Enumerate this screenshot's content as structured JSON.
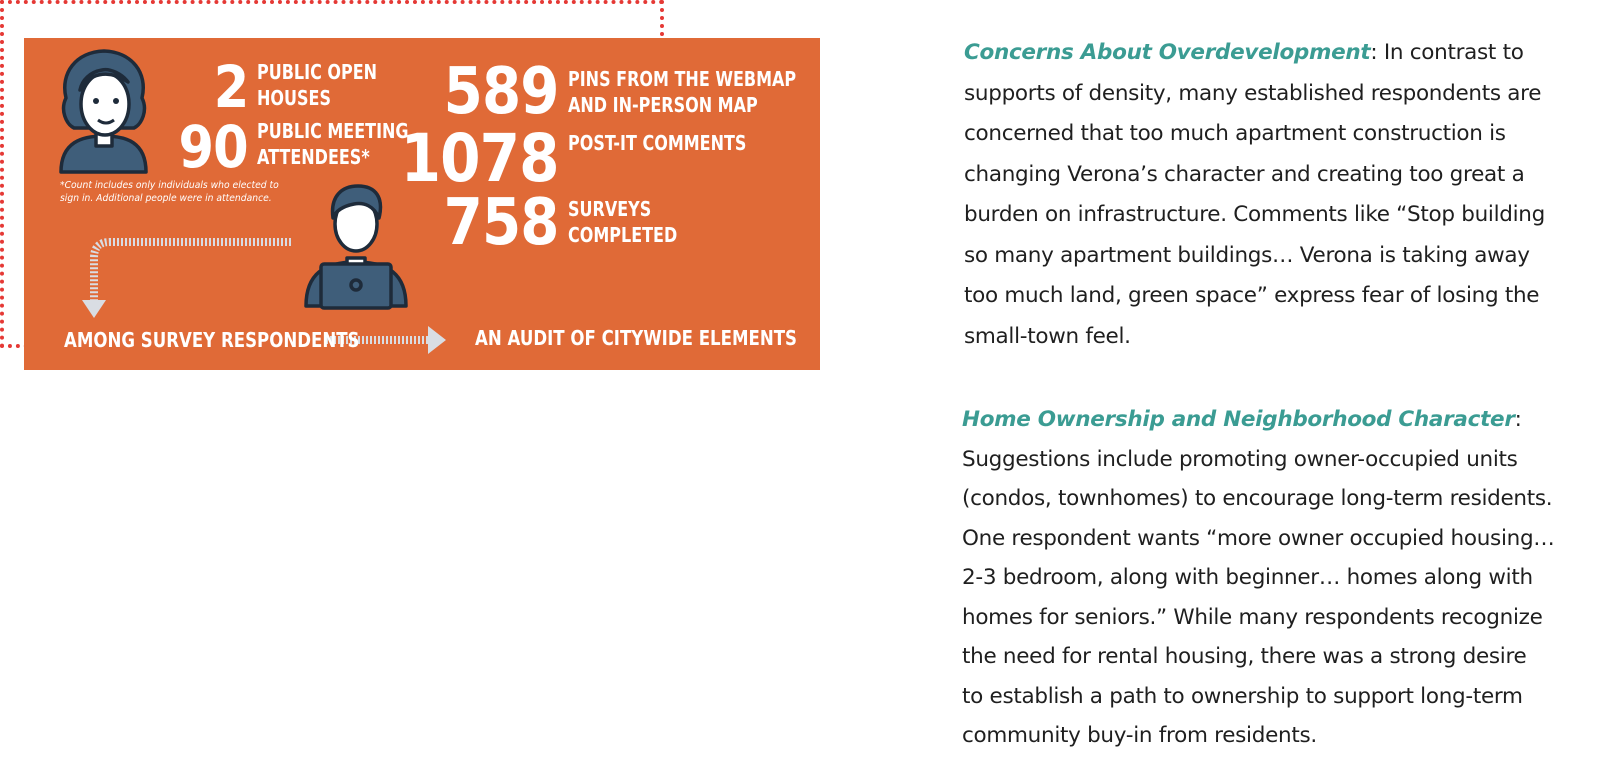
{
  "infographic": {
    "colors": {
      "background": "#E06A37",
      "icon_fill": "#3F5E7A",
      "icon_stroke": "#1E2B3A",
      "arrow": "#D9DDE3"
    },
    "icons": [
      "person-woman-icon",
      "person-laptop-icon",
      "arrow-down-icon",
      "arrow-right-icon"
    ],
    "stats": [
      {
        "number": "2",
        "label_line1": "PUBLIC OPEN",
        "label_line2": "HOUSES"
      },
      {
        "number": "90",
        "label_line1": "PUBLIC MEETING",
        "label_line2": "ATTENDEES*"
      },
      {
        "number": "589",
        "label_line1": "PINS FROM THE WEBMAP",
        "label_line2": "AND IN-PERSON MAP"
      },
      {
        "number": "1078",
        "label_line1": "POST-IT COMMENTS",
        "label_line2": ""
      },
      {
        "number": "758",
        "label_line1": "SURVEYS",
        "label_line2": "COMPLETED"
      }
    ],
    "footnote_line1": "*Count includes only individuals who elected to",
    "footnote_line2": "sign in. Additional people were in attendance.",
    "flow_left": "AMONG SURVEY RESPONDENTS",
    "flow_right": "AN AUDIT OF CITYWIDE ELEMENTS"
  },
  "concern": {
    "heading": "Concerns About Overdevelopment",
    "lines": [
      ": In contrast to",
      "supports of density, many established respondents are",
      "concerned that too much apartment construction is",
      "changing Verona’s character and creating too great a",
      "burden on infrastructure. Comments like “Stop building",
      "so many apartment buildings… Verona is taking away",
      "too much land, green space” express fear of losing the",
      "small-town feel."
    ],
    "border_color": "#E53935"
  },
  "ownership": {
    "heading": "Home Ownership and Neighborhood Character",
    "heading_suffix": ":",
    "lines": [
      "Suggestions include promoting owner-occupied units",
      "(condos, townhomes) to encourage long-term residents.",
      "One respondent wants “more owner occupied housing…",
      "2-3 bedroom, along with beginner… homes along with",
      "homes for seniors.” While many respondents recognize",
      "the need for rental housing, there was a strong desire",
      "to establish a path to ownership to support long-term",
      "community buy-in from residents."
    ]
  },
  "heading_color": "#3B9C93"
}
